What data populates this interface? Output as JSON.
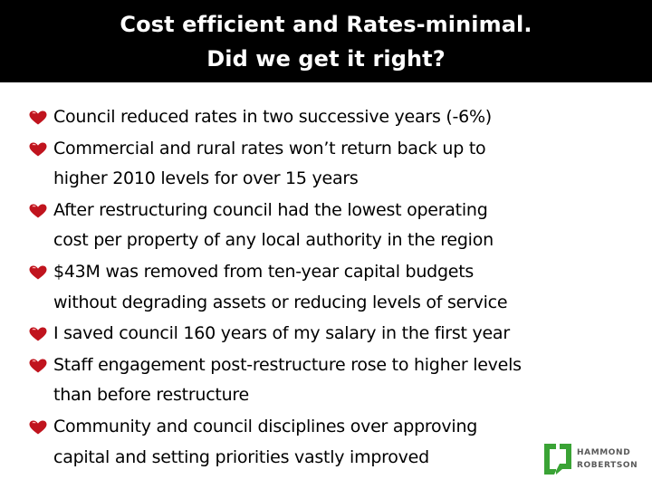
{
  "slide": {
    "title_lines": [
      "Cost efficient and Rates-minimal.",
      "Did we get it right?"
    ],
    "bullets": [
      {
        "lines": [
          "Council reduced rates in two successive years (-6%)"
        ]
      },
      {
        "lines": [
          "Commercial and rural rates won’t return back up to",
          "higher 2010 levels for over 15 years"
        ]
      },
      {
        "lines": [
          "After restructuring council had the lowest operating",
          "cost per property of any local authority in the region"
        ]
      },
      {
        "lines": [
          "$43M was removed from ten-year capital budgets",
          "without degrading assets or reducing levels of service"
        ]
      },
      {
        "lines": [
          "I saved council 160 years of my salary in the first year"
        ]
      },
      {
        "lines": [
          "Staff engagement post-restructure rose to higher levels",
          "than before restructure"
        ]
      },
      {
        "lines": [
          "Community and council disciplines over approving",
          "capital and setting priorities vastly improved"
        ]
      }
    ],
    "bullet_icon": "heart-icon",
    "logo": {
      "line1": "HAMMOND",
      "line2": "ROBERTSON"
    }
  },
  "colors": {
    "title_bar": "#000000",
    "title_text": "#ffffff",
    "body_text": "#000000",
    "bullet_heart": "#c0141e",
    "logo_green": "#3aa335",
    "logo_text": "#5a5a5a"
  }
}
